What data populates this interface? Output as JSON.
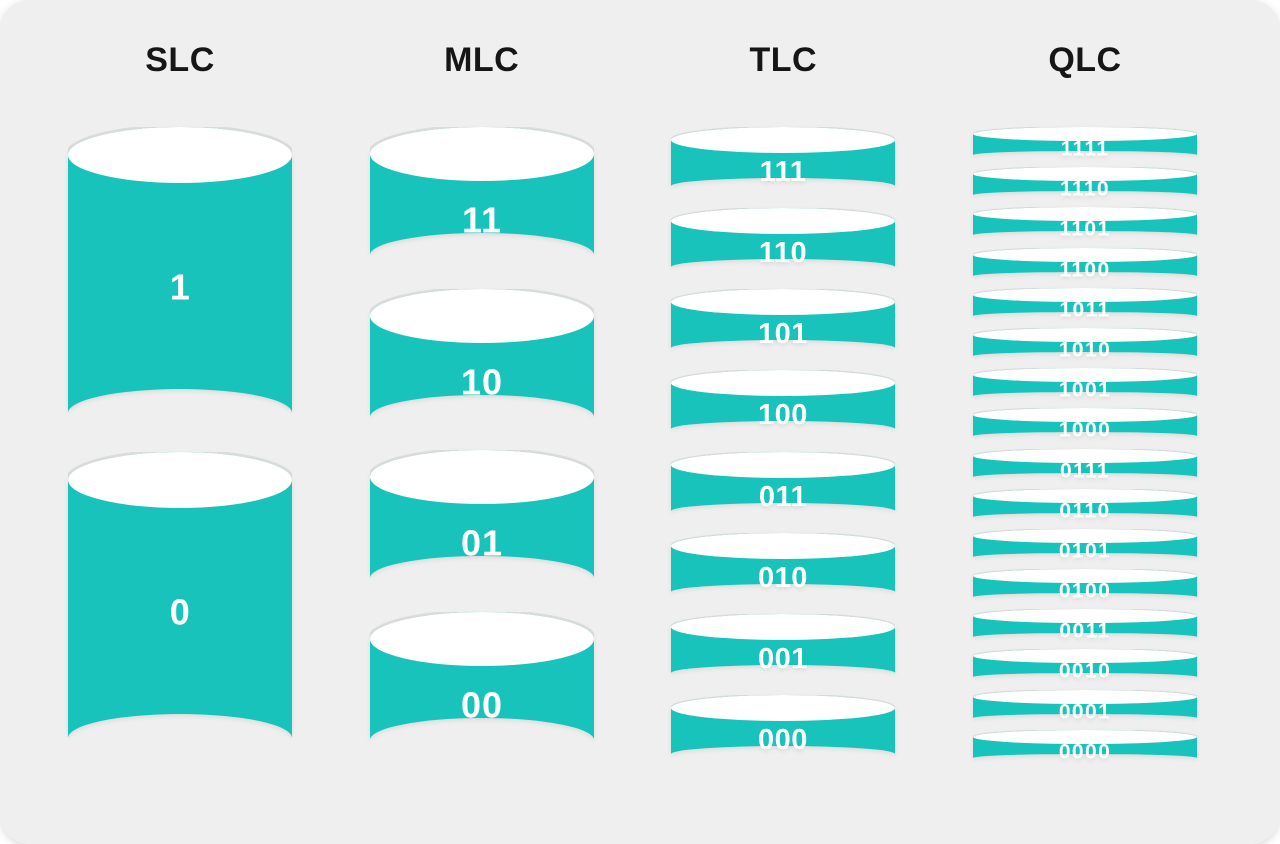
{
  "colors": {
    "teal": "#18C3BB",
    "cap": "#FFFFFF",
    "cell_text": "#FFFFFF",
    "header_text": "#161616",
    "card_background": "#EFEFEF",
    "page_background": "#FFFFFF"
  },
  "columns": [
    {
      "id": "slc",
      "label": "SLC",
      "cells": [
        "1",
        "0"
      ]
    },
    {
      "id": "mlc",
      "label": "MLC",
      "cells": [
        "11",
        "10",
        "01",
        "00"
      ]
    },
    {
      "id": "tlc",
      "label": "TLC",
      "cells": [
        "111",
        "110",
        "101",
        "100",
        "011",
        "010",
        "001",
        "000"
      ]
    },
    {
      "id": "qlc",
      "label": "QLC",
      "cells": [
        "1111",
        "1110",
        "1101",
        "1100",
        "1011",
        "1010",
        "1001",
        "1000",
        "0111",
        "0110",
        "0101",
        "0100",
        "0011",
        "0010",
        "0001",
        "0000"
      ]
    }
  ]
}
